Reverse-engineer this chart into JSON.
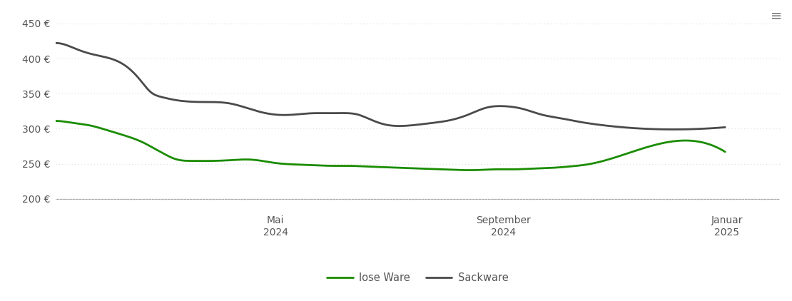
{
  "lose_ware_x": [
    0,
    5,
    10,
    18,
    28,
    38,
    48,
    55,
    60,
    65,
    75,
    85,
    95,
    105,
    110,
    115,
    120,
    130,
    140,
    150,
    160,
    170,
    180,
    190,
    200,
    210,
    220,
    230,
    240,
    250,
    260,
    270,
    280,
    290,
    300,
    365
  ],
  "lose_ware_y": [
    311,
    310,
    308,
    305,
    298,
    290,
    280,
    270,
    263,
    257,
    254,
    254,
    255,
    256,
    255,
    253,
    251,
    249,
    248,
    247,
    247,
    246,
    245,
    244,
    243,
    242,
    241,
    241,
    242,
    242,
    243,
    244,
    246,
    249,
    255,
    267
  ],
  "sackware_x": [
    0,
    5,
    10,
    15,
    22,
    30,
    38,
    46,
    52,
    58,
    65,
    80,
    95,
    110,
    120,
    130,
    140,
    150,
    160,
    165,
    170,
    178,
    185,
    195,
    205,
    215,
    225,
    235,
    245,
    255,
    265,
    275,
    285,
    295,
    305,
    365
  ],
  "sackware_y": [
    422,
    420,
    415,
    410,
    405,
    400,
    390,
    370,
    352,
    345,
    341,
    338,
    336,
    325,
    320,
    320,
    322,
    322,
    322,
    320,
    315,
    307,
    304,
    305,
    308,
    312,
    320,
    330,
    332,
    328,
    320,
    315,
    310,
    306,
    303,
    302
  ],
  "lose_ware_color": "#1a8c00",
  "sackware_color": "#4a4a4a",
  "grid_color": "#dddddd",
  "axis_line_color": "#aaaaaa",
  "text_color": "#555555",
  "bg_color": "#ffffff",
  "legend_lose": "lose Ware",
  "legend_sack": "Sackware",
  "ytick_labels": [
    "200 €",
    "250 €",
    "300 €",
    "350 €",
    "400 €",
    "450 €"
  ],
  "ytick_values": [
    200,
    250,
    300,
    350,
    400,
    450
  ],
  "ylim": [
    183,
    462
  ],
  "xlabel_ticks": [
    "Mai\n2024",
    "September\n2024",
    "Januar\n2025"
  ],
  "xlabel_day_offsets": [
    120,
    244,
    366
  ],
  "xlim": [
    0,
    395
  ],
  "line_width": 2.0,
  "hamburger_char": "≡"
}
